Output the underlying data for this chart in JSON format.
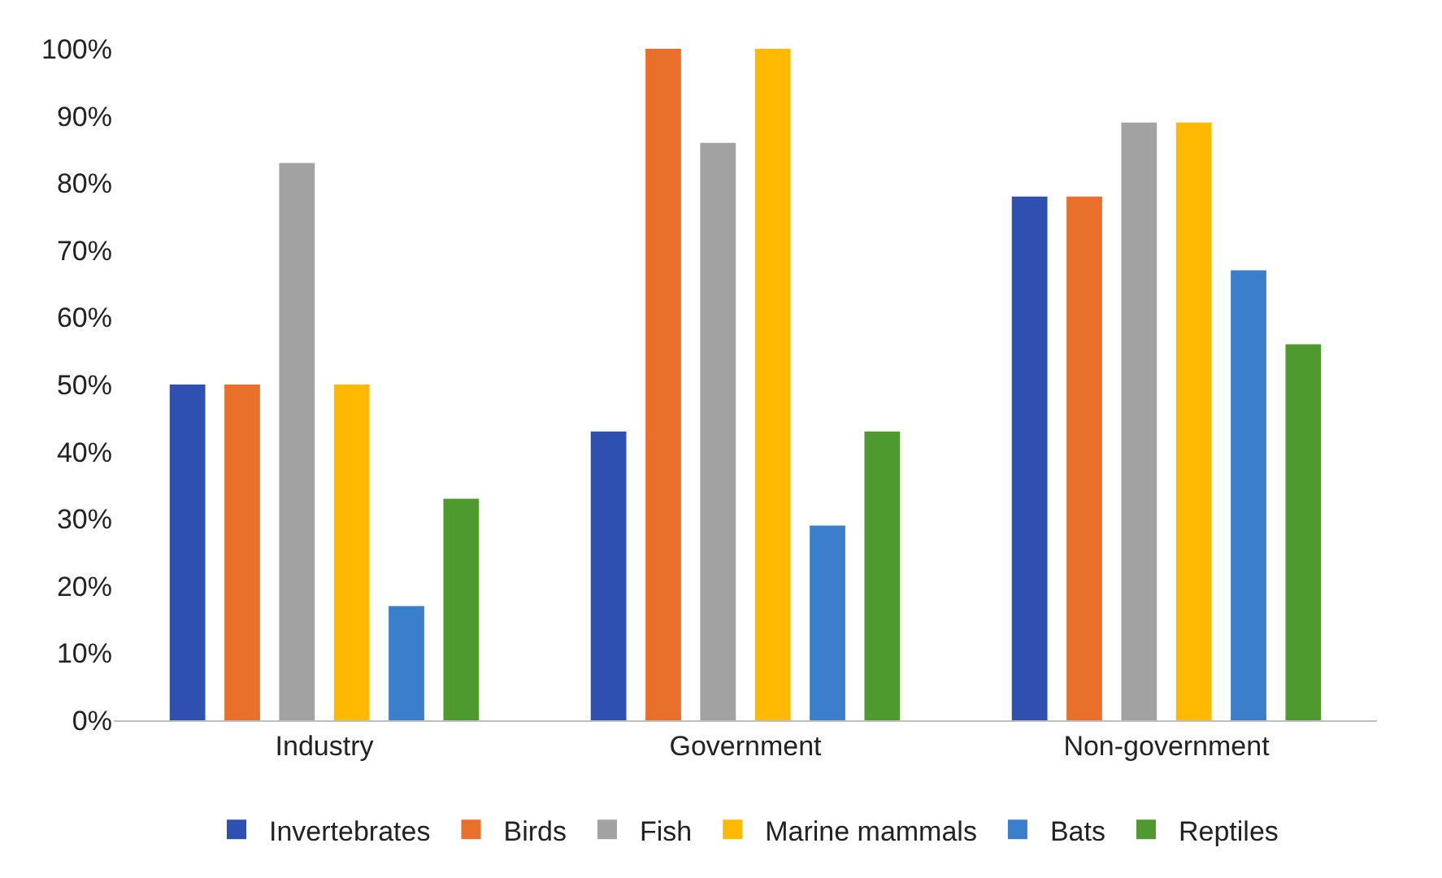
{
  "chart_data": {
    "type": "bar",
    "categories": [
      "Industry",
      "Government",
      "Non-government"
    ],
    "series": [
      {
        "name": "Invertebrates",
        "color": "#2e50b0",
        "values": [
          50,
          43,
          78
        ]
      },
      {
        "name": "Birds",
        "color": "#e8702a",
        "values": [
          50,
          100,
          78
        ]
      },
      {
        "name": "Fish",
        "color": "#a2a2a2",
        "values": [
          83,
          86,
          89
        ]
      },
      {
        "name": "Marine mammals",
        "color": "#ffb900",
        "values": [
          50,
          100,
          89
        ]
      },
      {
        "name": "Bats",
        "color": "#3b7fcc",
        "values": [
          17,
          29,
          67
        ]
      },
      {
        "name": "Reptiles",
        "color": "#4f9a2f",
        "values": [
          33,
          43,
          56
        ]
      }
    ],
    "ylim": [
      0,
      100
    ],
    "yticks": [
      {
        "value": 0,
        "label": "0%"
      },
      {
        "value": 10,
        "label": "10%"
      },
      {
        "value": 20,
        "label": "20%"
      },
      {
        "value": 30,
        "label": "30%"
      },
      {
        "value": 40,
        "label": "40%"
      },
      {
        "value": 50,
        "label": "50%"
      },
      {
        "value": 60,
        "label": "60%"
      },
      {
        "value": 70,
        "label": "70%"
      },
      {
        "value": 80,
        "label": "80%"
      },
      {
        "value": 90,
        "label": "90%"
      },
      {
        "value": 100,
        "label": "100%"
      }
    ],
    "legend": "bottom"
  }
}
